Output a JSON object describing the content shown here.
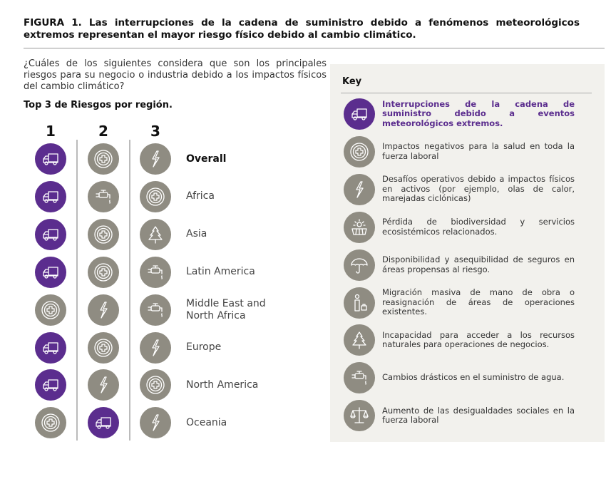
{
  "title": "FIGURA 1. Las interrupciones de la cadena de suministro debido a fenómenos meteorológicos extremos representan el mayor riesgo físico debido al cambio climático.",
  "question": "¿Cuáles de los siguientes considera que son los principales riesgos para su negocio o industria debido a los impactos físicos del cambio climático?",
  "subtitle": "Top 3 de Riesgos por región.",
  "colors": {
    "purple": "#5b2d8e",
    "gray": "#8f8c82",
    "panel": "#f2f1ed"
  },
  "columns": [
    "1",
    "2",
    "3"
  ],
  "rows": [
    {
      "region": "Overall",
      "bold": true,
      "ranks": [
        "truck",
        "health",
        "lightning"
      ]
    },
    {
      "region": "Africa",
      "ranks": [
        "truck",
        "water-tap",
        "health"
      ]
    },
    {
      "region": "Asia",
      "ranks": [
        "truck",
        "health",
        "tree"
      ]
    },
    {
      "region": "Latin America",
      "ranks": [
        "truck",
        "health",
        "water-tap"
      ]
    },
    {
      "region": "Middle East and North Africa",
      "ranks": [
        "health",
        "lightning",
        "water-tap"
      ]
    },
    {
      "region": "Europe",
      "ranks": [
        "truck",
        "health",
        "lightning"
      ]
    },
    {
      "region": "North America",
      "ranks": [
        "truck",
        "lightning",
        "health"
      ]
    },
    {
      "region": "Oceania",
      "ranks": [
        "health",
        "truck",
        "lightning"
      ]
    }
  ],
  "key": {
    "title": "Key",
    "items": [
      {
        "icon": "truck",
        "text": "Interrupciones de la cadena de suministro debido a eventos meteorológicos extremos.",
        "highlight": true
      },
      {
        "icon": "health",
        "text": "Impactos negativos para la salud en toda la fuerza laboral"
      },
      {
        "icon": "lightning",
        "text": "Desafíos operativos debido a impactos físicos en activos (por ejemplo, olas de calor, marejadas ciclónicas)"
      },
      {
        "icon": "biodiversity",
        "text": "Pérdida de biodiversidad y servicios ecosistémicos relacionados."
      },
      {
        "icon": "umbrella",
        "text": "Disponibilidad y asequibilidad de seguros en áreas propensas al riesgo."
      },
      {
        "icon": "migration",
        "text": "Migración masiva de mano de obra o reasignación de áreas de operaciones existentes."
      },
      {
        "icon": "tree",
        "text": "Incapacidad para acceder a los recursos naturales para operaciones de negocios."
      },
      {
        "icon": "water-tap",
        "text": "Cambios drásticos en el suministro de agua."
      },
      {
        "icon": "scales",
        "text": "Aumento de las desigualdades sociales en la fuerza laboral"
      }
    ]
  }
}
